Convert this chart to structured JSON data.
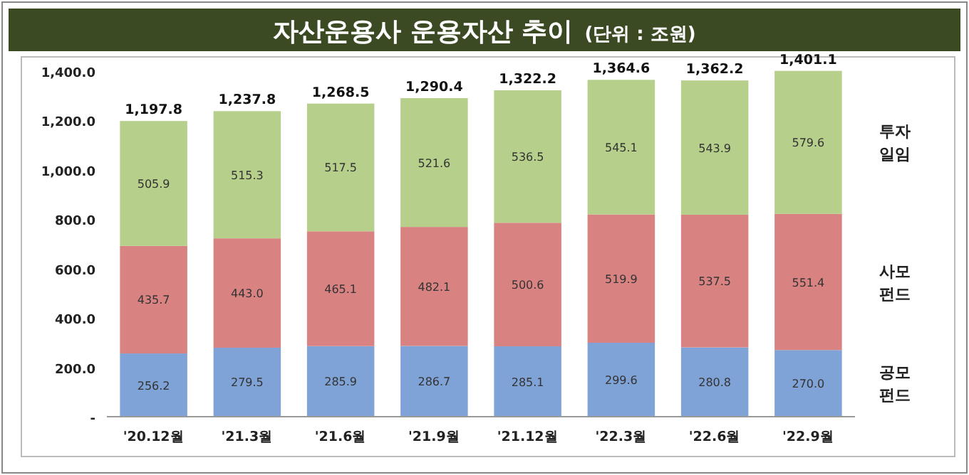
{
  "chart_data": {
    "type": "bar",
    "stacked": true,
    "title": "자산운용사 운용자산 추이",
    "subtitle": "(단위 : 조원)",
    "categories": [
      "'20.12월",
      "'21.3월",
      "'21.6월",
      "'21.9월",
      "'21.12월",
      "'22.3월",
      "'22.6월",
      "'22.9월"
    ],
    "series": [
      {
        "name": "공모 펀드",
        "color": "#7fa3d6",
        "values": [
          256.2,
          279.5,
          285.9,
          286.7,
          285.1,
          299.6,
          280.8,
          270.0
        ],
        "value_labels": [
          "256.2",
          "279.5",
          "285.9",
          "286.7",
          "285.1",
          "299.6",
          "280.8",
          "270.0"
        ]
      },
      {
        "name": "사모 펀드",
        "color": "#d98282",
        "values": [
          435.7,
          443.0,
          465.1,
          482.1,
          500.6,
          519.9,
          537.5,
          551.4
        ],
        "value_labels": [
          "435.7",
          "443.0",
          "465.1",
          "482.1",
          "500.6",
          "519.9",
          "537.5",
          "551.4"
        ]
      },
      {
        "name": "투자 일임",
        "color": "#b6cf8b",
        "values": [
          505.9,
          515.3,
          517.5,
          521.6,
          536.5,
          545.1,
          543.9,
          579.6
        ],
        "value_labels": [
          "505.9",
          "515.3",
          "517.5",
          "521.6",
          "536.5",
          "545.1",
          "543.9",
          "579.6"
        ]
      }
    ],
    "totals": [
      "1,197.8",
      "1,237.8",
      "1,268.5",
      "1,290.4",
      "1,322.2",
      "1,364.6",
      "1,362.2",
      "1,401.1"
    ],
    "grid": false,
    "legend": "right",
    "ylim": [
      0,
      1400
    ],
    "yticks": [
      {
        "value": 0,
        "label": "-"
      },
      {
        "value": 200,
        "label": "200.0"
      },
      {
        "value": 400,
        "label": "400.0"
      },
      {
        "value": 600,
        "label": "600.0"
      },
      {
        "value": 800,
        "label": "800.0"
      },
      {
        "value": 1000,
        "label": "1,000.0"
      },
      {
        "value": 1200,
        "label": "1,200.0"
      },
      {
        "value": 1400,
        "label": "1,400.0"
      }
    ]
  }
}
